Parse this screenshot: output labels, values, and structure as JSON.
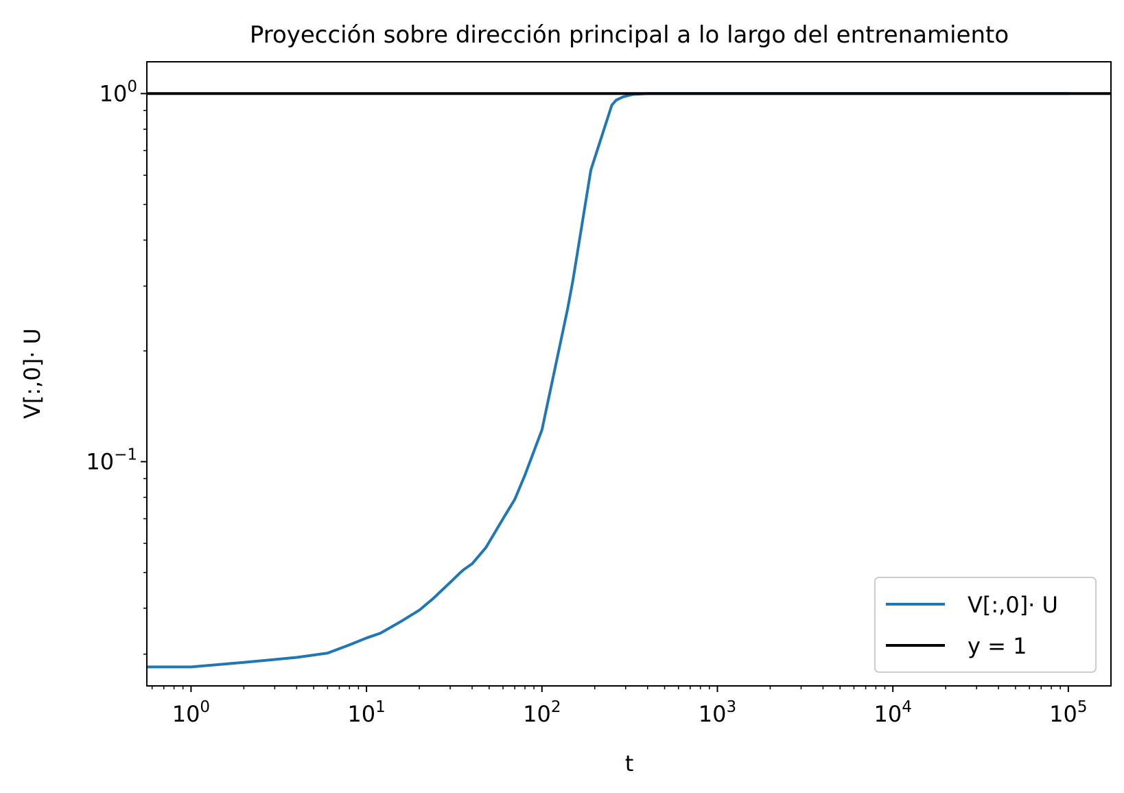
{
  "chart_data": {
    "type": "line",
    "title": "Proyección sobre dirección principal a lo largo del entrenamiento",
    "xlabel": "t",
    "ylabel": "V[:,0]· U",
    "xscale": "log",
    "yscale": "log",
    "xlim": [
      0.56,
      175000
    ],
    "ylim": [
      0.0246,
      1.22
    ],
    "x_ticks": [
      {
        "value": 1,
        "base": "10",
        "exp": "0"
      },
      {
        "value": 10,
        "base": "10",
        "exp": "1"
      },
      {
        "value": 100,
        "base": "10",
        "exp": "2"
      },
      {
        "value": 1000,
        "base": "10",
        "exp": "3"
      },
      {
        "value": 10000,
        "base": "10",
        "exp": "4"
      },
      {
        "value": 100000,
        "base": "10",
        "exp": "5"
      }
    ],
    "y_ticks": [
      {
        "value": 0.1,
        "base": "10",
        "exp": "−1"
      },
      {
        "value": 1,
        "base": "10",
        "exp": "0"
      }
    ],
    "grid": false,
    "legend_position": "lower-right",
    "series": [
      {
        "name": "V[:,0]· U",
        "color": "#1f77b4",
        "x": [
          0.56,
          1,
          2,
          4,
          6,
          8,
          10,
          12,
          16,
          20,
          24,
          30,
          34,
          36,
          40,
          48,
          60,
          70,
          80,
          100,
          130,
          140,
          150,
          190,
          250,
          265,
          290,
          330,
          400,
          1000,
          10000,
          100000
        ],
        "y": [
          0.0277,
          0.0277,
          0.0285,
          0.0294,
          0.0302,
          0.0318,
          0.0332,
          0.0342,
          0.037,
          0.0395,
          0.0425,
          0.047,
          0.0498,
          0.051,
          0.0528,
          0.0585,
          0.07,
          0.079,
          0.092,
          0.122,
          0.22,
          0.26,
          0.31,
          0.62,
          0.93,
          0.96,
          0.98,
          0.995,
          1.0,
          1.0,
          1.0,
          1.0
        ]
      },
      {
        "name": "y = 1",
        "color": "#000000",
        "x": [
          0.56,
          175000
        ],
        "y": [
          1,
          1
        ]
      }
    ]
  }
}
